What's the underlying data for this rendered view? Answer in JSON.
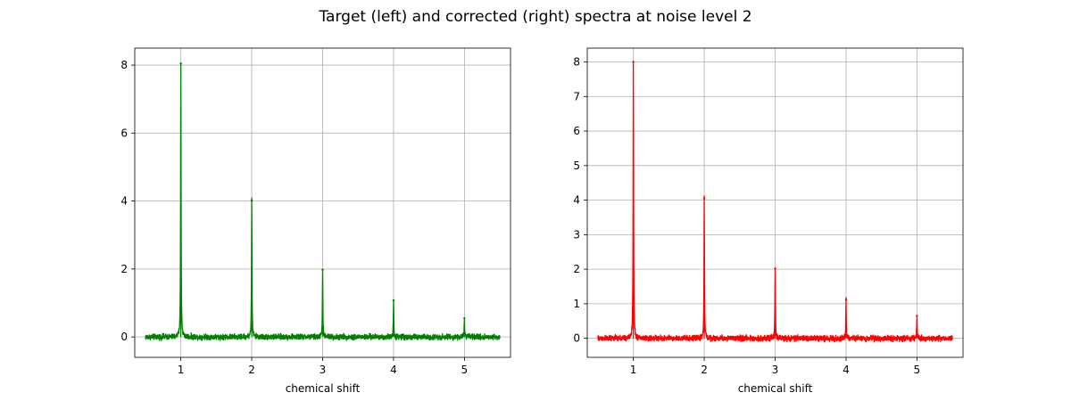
{
  "figure": {
    "suptitle": "Target (left) and corrected (right) spectra at noise level 2"
  },
  "chart_data": [
    {
      "type": "line",
      "xlabel": "chemical shift",
      "ylabel": "",
      "xlim": [
        0.35,
        5.65
      ],
      "ylim": [
        -0.6,
        8.5
      ],
      "xticks": [
        1,
        2,
        3,
        4,
        5
      ],
      "yticks": [
        0,
        2,
        4,
        6,
        8
      ],
      "grid": true,
      "series": [
        {
          "color": "#008000",
          "x_range": [
            0.5,
            5.5
          ],
          "noise_amplitude": 0.12,
          "peaks": [
            {
              "x": 1.0,
              "y": 8.05
            },
            {
              "x": 2.0,
              "y": 4.02
            },
            {
              "x": 3.0,
              "y": 1.98
            },
            {
              "x": 4.0,
              "y": 1.08
            },
            {
              "x": 5.0,
              "y": 0.55
            }
          ]
        }
      ]
    },
    {
      "type": "line",
      "xlabel": "chemical shift",
      "ylabel": "",
      "xlim": [
        0.35,
        5.65
      ],
      "ylim": [
        -0.55,
        8.4
      ],
      "xticks": [
        1,
        2,
        3,
        4,
        5
      ],
      "yticks": [
        0,
        1,
        2,
        3,
        4,
        5,
        6,
        7,
        8
      ],
      "grid": true,
      "series": [
        {
          "color": "#ff0000",
          "x_range": [
            0.5,
            5.5
          ],
          "noise_amplitude": 0.12,
          "peaks": [
            {
              "x": 1.0,
              "y": 8.0
            },
            {
              "x": 2.0,
              "y": 4.05
            },
            {
              "x": 3.0,
              "y": 2.02
            },
            {
              "x": 4.0,
              "y": 1.12
            },
            {
              "x": 5.0,
              "y": 0.65
            }
          ]
        }
      ]
    }
  ]
}
